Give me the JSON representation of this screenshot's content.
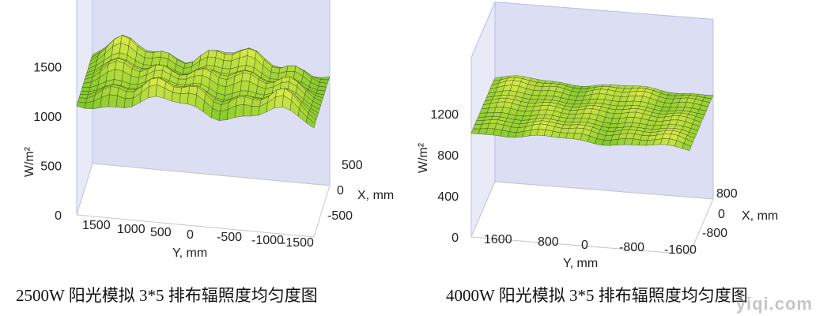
{
  "colors": {
    "wall": "#dcdff3",
    "wallEdge": "#b8bde0",
    "surface": "#8fd02c",
    "surfaceLight": "#cfe649",
    "surfaceDark": "#6fb826",
    "mesh": "#1f2a10"
  },
  "chart_data": [
    {
      "type": "surface",
      "caption": "2500W 阳光模拟 3*5 排布辐照度均匀度图",
      "zlabel": "W/m²",
      "xlabel": "X, mm",
      "ylabel": "Y, mm",
      "z_ticks": [
        "0",
        "500",
        "1000",
        "1500"
      ],
      "x_ticks": [
        "500",
        "0",
        "-500"
      ],
      "y_ticks": [
        "1500",
        "1000",
        "500",
        "0",
        "-500",
        "-1000",
        "-1500"
      ],
      "zlim": [
        0,
        1800
      ],
      "xlim": [
        -700,
        700
      ],
      "ylim": [
        -1800,
        1800
      ],
      "surface": {
        "base": 1200,
        "amplitude": 230,
        "grid_x": [
          -700,
          -350,
          0,
          350,
          700
        ],
        "grid_y": [
          -1800,
          -1200,
          -600,
          0,
          600,
          1200,
          1800
        ],
        "peaks_x": [
          -500,
          0,
          500
        ],
        "peaks_y": [
          -1300,
          -650,
          0,
          650,
          1300
        ]
      }
    },
    {
      "type": "surface",
      "caption": "4000W 阳光模拟 3*5 排布辐照度均匀度图",
      "zlabel": "W/m²",
      "xlabel": "X, mm",
      "ylabel": "Y, mm",
      "z_ticks": [
        "0",
        "400",
        "800",
        "1200"
      ],
      "x_ticks": [
        "800",
        "0",
        "-800"
      ],
      "y_ticks": [
        "1600",
        "800",
        "0",
        "-800",
        "-1600"
      ],
      "zlim": [
        0,
        1400
      ],
      "xlim": [
        -1000,
        1000
      ],
      "ylim": [
        -2000,
        2000
      ],
      "surface": {
        "base": 1030,
        "amplitude": 60,
        "grid_x": [
          -1000,
          -500,
          0,
          500,
          1000
        ],
        "grid_y": [
          -2000,
          -1000,
          0,
          1000,
          2000
        ],
        "peaks_x": [
          -700,
          0,
          700
        ],
        "peaks_y": [
          -1600,
          -800,
          0,
          800,
          1600
        ]
      }
    }
  ],
  "watermark": "yiqi.com"
}
